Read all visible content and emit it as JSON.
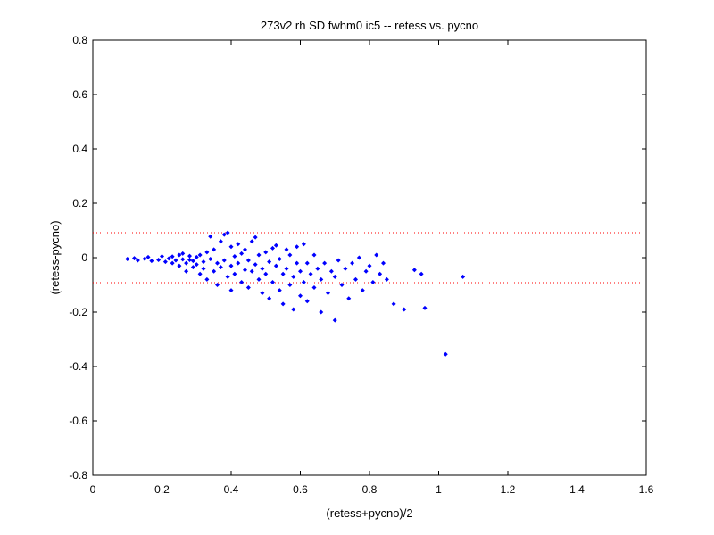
{
  "chart_data": {
    "type": "scatter",
    "title": "273v2 rh SD fwhm0 ic5 -- retess vs. pycno",
    "xlabel": "(retess+pycno)/2",
    "ylabel": "(retess-pycno)",
    "xlim": [
      0,
      1.6
    ],
    "ylim": [
      -0.8,
      0.8
    ],
    "xticks": [
      0,
      0.2,
      0.4,
      0.6,
      0.8,
      1,
      1.2,
      1.4,
      1.6
    ],
    "xtick_labels": [
      "0",
      "0.2",
      "0.4",
      "0.6",
      "0.8",
      "1",
      "1.2",
      "1.4",
      "1.6"
    ],
    "yticks": [
      -0.8,
      -0.6,
      -0.4,
      -0.2,
      0,
      0.2,
      0.4,
      0.6,
      0.8
    ],
    "ytick_labels": [
      "-0.8",
      "-0.6",
      "-0.4",
      "-0.2",
      "0",
      "0.2",
      "0.4",
      "0.6",
      "0.8"
    ],
    "grid": false,
    "marker_color": "#0000ff",
    "reference_line_color": "#ff0000",
    "reference_lines_y": [
      0.092,
      -0.092
    ],
    "series": [
      {
        "points": [
          [
            0.1,
            -0.005
          ],
          [
            0.12,
            -0.002
          ],
          [
            0.13,
            -0.01
          ],
          [
            0.15,
            -0.004
          ],
          [
            0.16,
            0.002
          ],
          [
            0.17,
            -0.012
          ],
          [
            0.19,
            -0.008
          ],
          [
            0.2,
            0.005
          ],
          [
            0.21,
            -0.015
          ],
          [
            0.22,
            -0.003
          ],
          [
            0.23,
            0.004
          ],
          [
            0.23,
            -0.02
          ],
          [
            0.24,
            -0.01
          ],
          [
            0.25,
            0.01
          ],
          [
            0.25,
            -0.03
          ],
          [
            0.26,
            -0.006
          ],
          [
            0.26,
            0.015
          ],
          [
            0.27,
            -0.05
          ],
          [
            0.27,
            -0.02
          ],
          [
            0.28,
            -0.008
          ],
          [
            0.28,
            0.006
          ],
          [
            0.29,
            -0.012
          ],
          [
            0.29,
            -0.035
          ],
          [
            0.3,
            0.002
          ],
          [
            0.3,
            -0.025
          ],
          [
            0.31,
            -0.06
          ],
          [
            0.31,
            0.01
          ],
          [
            0.32,
            -0.015
          ],
          [
            0.32,
            -0.04
          ],
          [
            0.33,
            0.02
          ],
          [
            0.33,
            -0.08
          ],
          [
            0.34,
            0.078
          ],
          [
            0.34,
            -0.005
          ],
          [
            0.35,
            -0.05
          ],
          [
            0.35,
            0.03
          ],
          [
            0.36,
            -0.02
          ],
          [
            0.36,
            -0.1
          ],
          [
            0.37,
            0.06
          ],
          [
            0.37,
            -0.035
          ],
          [
            0.38,
            0.085
          ],
          [
            0.38,
            -0.01
          ],
          [
            0.39,
            0.092
          ],
          [
            0.39,
            -0.07
          ],
          [
            0.4,
            0.04
          ],
          [
            0.4,
            -0.03
          ],
          [
            0.4,
            -0.12
          ],
          [
            0.41,
            0.005
          ],
          [
            0.41,
            -0.06
          ],
          [
            0.42,
            0.05
          ],
          [
            0.42,
            -0.02
          ],
          [
            0.43,
            -0.09
          ],
          [
            0.43,
            0.015
          ],
          [
            0.44,
            -0.045
          ],
          [
            0.44,
            0.03
          ],
          [
            0.45,
            -0.01
          ],
          [
            0.45,
            -0.11
          ],
          [
            0.46,
            0.06
          ],
          [
            0.46,
            -0.05
          ],
          [
            0.47,
            -0.025
          ],
          [
            0.47,
            0.075
          ],
          [
            0.48,
            -0.08
          ],
          [
            0.48,
            0.01
          ],
          [
            0.49,
            -0.04
          ],
          [
            0.49,
            -0.13
          ],
          [
            0.5,
            0.02
          ],
          [
            0.5,
            -0.06
          ],
          [
            0.51,
            -0.015
          ],
          [
            0.51,
            -0.15
          ],
          [
            0.52,
            0.035
          ],
          [
            0.52,
            -0.09
          ],
          [
            0.53,
            -0.03
          ],
          [
            0.53,
            0.045
          ],
          [
            0.54,
            -0.12
          ],
          [
            0.54,
            -0.005
          ],
          [
            0.55,
            -0.17
          ],
          [
            0.55,
            -0.06
          ],
          [
            0.56,
            0.03
          ],
          [
            0.56,
            -0.04
          ],
          [
            0.57,
            -0.1
          ],
          [
            0.57,
            0.01
          ],
          [
            0.58,
            -0.07
          ],
          [
            0.58,
            -0.19
          ],
          [
            0.59,
            0.04
          ],
          [
            0.59,
            -0.02
          ],
          [
            0.6,
            -0.14
          ],
          [
            0.6,
            -0.05
          ],
          [
            0.61,
            0.05
          ],
          [
            0.61,
            -0.09
          ],
          [
            0.62,
            -0.02
          ],
          [
            0.62,
            -0.16
          ],
          [
            0.63,
            -0.06
          ],
          [
            0.64,
            -0.11
          ],
          [
            0.64,
            0.01
          ],
          [
            0.65,
            -0.04
          ],
          [
            0.66,
            -0.2
          ],
          [
            0.66,
            -0.08
          ],
          [
            0.67,
            -0.02
          ],
          [
            0.68,
            -0.13
          ],
          [
            0.69,
            -0.05
          ],
          [
            0.7,
            -0.23
          ],
          [
            0.7,
            -0.07
          ],
          [
            0.71,
            -0.01
          ],
          [
            0.72,
            -0.1
          ],
          [
            0.73,
            -0.04
          ],
          [
            0.74,
            -0.15
          ],
          [
            0.75,
            -0.02
          ],
          [
            0.76,
            -0.08
          ],
          [
            0.77,
            0.0
          ],
          [
            0.78,
            -0.12
          ],
          [
            0.79,
            -0.05
          ],
          [
            0.8,
            -0.03
          ],
          [
            0.81,
            -0.09
          ],
          [
            0.82,
            0.01
          ],
          [
            0.83,
            -0.06
          ],
          [
            0.84,
            -0.02
          ],
          [
            0.85,
            -0.08
          ],
          [
            0.87,
            -0.17
          ],
          [
            0.9,
            -0.19
          ],
          [
            0.93,
            -0.045
          ],
          [
            0.95,
            -0.06
          ],
          [
            0.96,
            -0.185
          ],
          [
            1.02,
            -0.355
          ],
          [
            1.07,
            -0.07
          ]
        ]
      }
    ]
  }
}
